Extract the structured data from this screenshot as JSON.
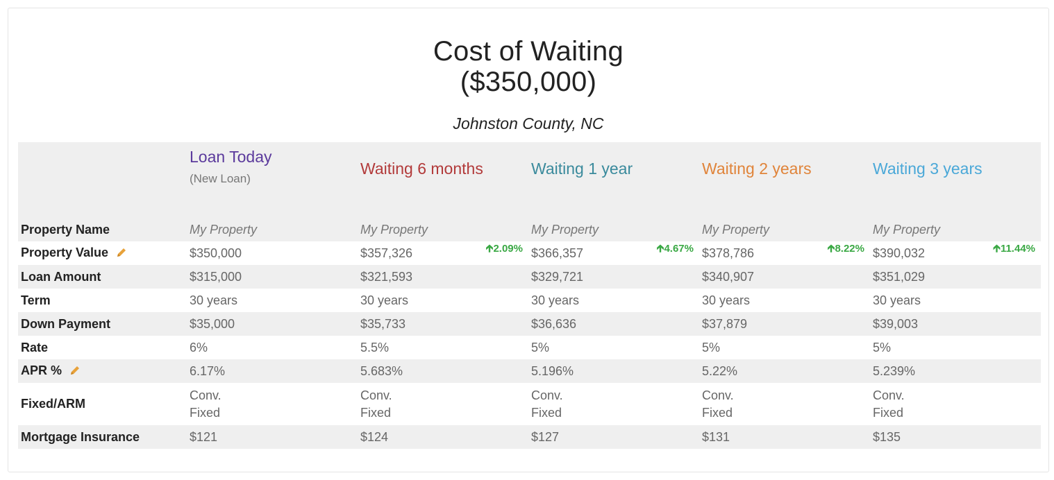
{
  "header": {
    "title_line1": "Cost of Waiting",
    "title_line2": "($350,000)",
    "location": "Johnston County, NC"
  },
  "colors": {
    "loan_today": "#5b3a9c",
    "wait_6m": "#b23a3a",
    "wait_1y": "#3a8a9c",
    "wait_2y": "#e0843a",
    "wait_3y": "#4aa8d8",
    "increase": "#3aa844",
    "pencil": "#e8a23a"
  },
  "columns": [
    {
      "name": "Loan Today",
      "sub": "(New Loan)"
    },
    {
      "name": "Waiting 6 months",
      "sub": ""
    },
    {
      "name": "Waiting 1 year",
      "sub": ""
    },
    {
      "name": "Waiting 2 years",
      "sub": ""
    },
    {
      "name": "Waiting 3 years",
      "sub": ""
    }
  ],
  "rows": {
    "property_name": {
      "label": "Property Name",
      "values": [
        "My Property",
        "My Property",
        "My Property",
        "My Property",
        "My Property"
      ]
    },
    "property_value": {
      "label": "Property Value",
      "values": [
        "$350,000",
        "$357,326",
        "$366,357",
        "$378,786",
        "$390,032"
      ],
      "deltas": [
        "",
        "2.09%",
        "4.67%",
        "8.22%",
        "11.44%"
      ]
    },
    "loan_amount": {
      "label": "Loan Amount",
      "values": [
        "$315,000",
        "$321,593",
        "$329,721",
        "$340,907",
        "$351,029"
      ]
    },
    "term": {
      "label": "Term",
      "values": [
        "30 years",
        "30 years",
        "30 years",
        "30 years",
        "30 years"
      ]
    },
    "down_payment": {
      "label": "Down Payment",
      "values": [
        "$35,000",
        "$35,733",
        "$36,636",
        "$37,879",
        "$39,003"
      ]
    },
    "rate": {
      "label": "Rate",
      "values": [
        "6%",
        "5.5%",
        "5%",
        "5%",
        "5%"
      ]
    },
    "apr": {
      "label": "APR %",
      "values": [
        "6.17%",
        "5.683%",
        "5.196%",
        "5.22%",
        "5.239%"
      ]
    },
    "fixed_arm": {
      "label": "Fixed/ARM",
      "line1": [
        "Conv.",
        "Conv.",
        "Conv.",
        "Conv.",
        "Conv."
      ],
      "line2": [
        "Fixed",
        "Fixed",
        "Fixed",
        "Fixed",
        "Fixed"
      ]
    },
    "mortgage_insurance": {
      "label": "Mortgage Insurance",
      "values": [
        "$121",
        "$124",
        "$127",
        "$131",
        "$135"
      ]
    }
  },
  "icons": {
    "up_arrow": "up-arrow-icon",
    "edit": "pencil-icon"
  }
}
